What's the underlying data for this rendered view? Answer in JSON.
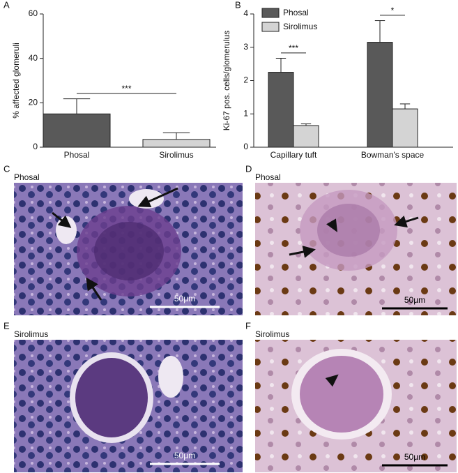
{
  "chart_data": [
    {
      "type": "bar",
      "panel_label": "A",
      "ylabel": "% affected glomeruli",
      "categories": [
        "Phosal",
        "Sirolimus"
      ],
      "values": [
        15,
        3.5
      ],
      "errors": [
        6.8,
        3
      ],
      "colors": [
        "#595959",
        "#d4d4d4"
      ],
      "ylim": [
        0,
        60
      ],
      "yticks": [
        0,
        20,
        40,
        60
      ],
      "annotations": [
        "***"
      ]
    },
    {
      "type": "bar",
      "panel_label": "B",
      "ylabel": "Ki-67 pos. cells/glomerulus",
      "categories": [
        "Capillary tuft",
        "Bowman's space"
      ],
      "series": [
        {
          "name": "Phosal",
          "color": "#595959",
          "values": [
            2.25,
            3.15
          ],
          "errors": [
            0.42,
            0.65
          ]
        },
        {
          "name": "Sirolimus",
          "color": "#d4d4d4",
          "values": [
            0.65,
            1.15
          ],
          "errors": [
            0.05,
            0.15
          ]
        }
      ],
      "ylim": [
        0,
        4
      ],
      "yticks": [
        0,
        1,
        2,
        3,
        4
      ],
      "legend": "upper-left",
      "annotations": [
        "***",
        "*"
      ]
    }
  ],
  "panels": [
    {
      "letter": "C",
      "title": "Phosal",
      "scale": "50µm"
    },
    {
      "letter": "D",
      "title": "Phosal",
      "scale": "50µm"
    },
    {
      "letter": "E",
      "title": "Sirolimus",
      "scale": "50µm"
    },
    {
      "letter": "F",
      "title": "Sirolimus",
      "scale": "50µm"
    }
  ]
}
